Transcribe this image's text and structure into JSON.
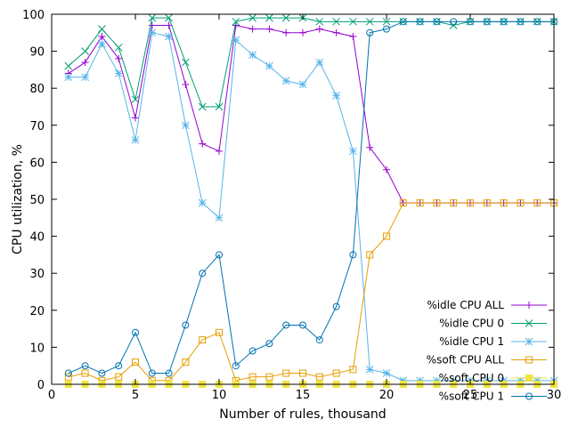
{
  "chart_data": {
    "type": "line",
    "title": "",
    "xlabel": "Number of rules, thousand",
    "ylabel": "CPU utilization, %",
    "xlim": [
      0,
      30
    ],
    "ylim": [
      0,
      100
    ],
    "xticks": [
      0,
      5,
      10,
      15,
      20,
      25,
      30
    ],
    "yticks": [
      0,
      10,
      20,
      30,
      40,
      50,
      60,
      70,
      80,
      90,
      100
    ],
    "grid": false,
    "legend": "bottom-right",
    "x": [
      1,
      2,
      3,
      4,
      5,
      6,
      7,
      8,
      9,
      10,
      11,
      12,
      13,
      14,
      15,
      16,
      17,
      18,
      19,
      20,
      21,
      22,
      23,
      24,
      25,
      26,
      27,
      28,
      29,
      30
    ],
    "series": [
      {
        "name": "%idle CPU ALL",
        "color": "#9400d3",
        "marker": "plus",
        "values": [
          84,
          87,
          94,
          88,
          72,
          97,
          97,
          81,
          65,
          63,
          97,
          96,
          96,
          95,
          95,
          96,
          95,
          94,
          64,
          58,
          49,
          49,
          49,
          49,
          49,
          49,
          49,
          49,
          49,
          49
        ]
      },
      {
        "name": "%idle CPU 0",
        "color": "#009e73",
        "marker": "x",
        "values": [
          86,
          90,
          96,
          91,
          77,
          99,
          99,
          87,
          75,
          75,
          98,
          99,
          99,
          99,
          99,
          98,
          98,
          98,
          98,
          98,
          98,
          98,
          98,
          97,
          98,
          98,
          98,
          98,
          98,
          98
        ]
      },
      {
        "name": "%idle CPU 1",
        "color": "#56b4e9",
        "marker": "star",
        "values": [
          83,
          83,
          92,
          84,
          66,
          95,
          94,
          70,
          49,
          45,
          93,
          89,
          86,
          82,
          81,
          87,
          78,
          63,
          4,
          3,
          1,
          1,
          1,
          1,
          1,
          1,
          1,
          1,
          1,
          1
        ]
      },
      {
        "name": "%soft CPU ALL",
        "color": "#e69f00",
        "marker": "square",
        "values": [
          2,
          3,
          1,
          2,
          6,
          1,
          1,
          6,
          12,
          14,
          1,
          2,
          2,
          3,
          3,
          2,
          3,
          4,
          35,
          40,
          49,
          49,
          49,
          49,
          49,
          49,
          49,
          49,
          49,
          49
        ]
      },
      {
        "name": "%soft CPU 0",
        "color": "#f0e442",
        "marker": "filled-square",
        "values": [
          0,
          0,
          0,
          0,
          0,
          0,
          0,
          0,
          0,
          0,
          0,
          0,
          0,
          0,
          0,
          0,
          0,
          0,
          0,
          0,
          0,
          0,
          0,
          0,
          0,
          0,
          0,
          0,
          0,
          0
        ]
      },
      {
        "name": "%soft CPU 1",
        "color": "#0072b2",
        "marker": "circle",
        "values": [
          3,
          5,
          3,
          5,
          14,
          3,
          3,
          16,
          30,
          35,
          5,
          9,
          11,
          16,
          16,
          12,
          21,
          35,
          95,
          96,
          98,
          98,
          98,
          98,
          98,
          98,
          98,
          98,
          98,
          98
        ]
      }
    ]
  }
}
